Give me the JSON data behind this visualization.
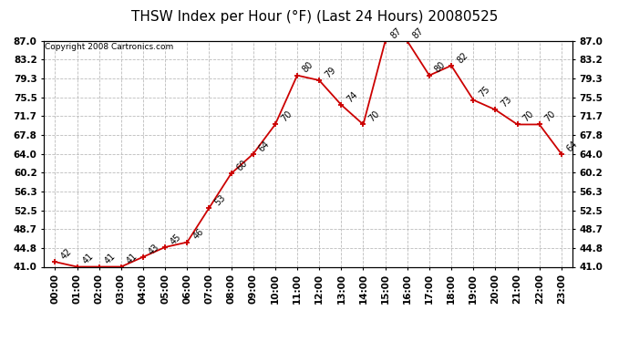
{
  "title": "THSW Index per Hour (°F) (Last 24 Hours) 20080525",
  "copyright": "Copyright 2008 Cartronics.com",
  "hours": [
    "00:00",
    "01:00",
    "02:00",
    "03:00",
    "04:00",
    "05:00",
    "06:00",
    "07:00",
    "08:00",
    "09:00",
    "10:00",
    "11:00",
    "12:00",
    "13:00",
    "14:00",
    "15:00",
    "16:00",
    "17:00",
    "18:00",
    "19:00",
    "20:00",
    "21:00",
    "22:00",
    "23:00"
  ],
  "values": [
    42,
    41,
    41,
    41,
    43,
    45,
    46,
    53,
    60,
    64,
    70,
    80,
    79,
    74,
    70,
    87,
    87,
    80,
    82,
    75,
    73,
    70,
    70,
    64
  ],
  "ylim_min": 41.0,
  "ylim_max": 87.0,
  "yticks": [
    41.0,
    44.8,
    48.7,
    52.5,
    56.3,
    60.2,
    64.0,
    67.8,
    71.7,
    75.5,
    79.3,
    83.2,
    87.0
  ],
  "line_color": "#cc0000",
  "marker_color": "#cc0000",
  "bg_color": "#ffffff",
  "grid_color": "#bbbbbb",
  "title_fontsize": 11,
  "tick_fontsize": 7.5,
  "annot_fontsize": 7,
  "copyright_fontsize": 6.5
}
